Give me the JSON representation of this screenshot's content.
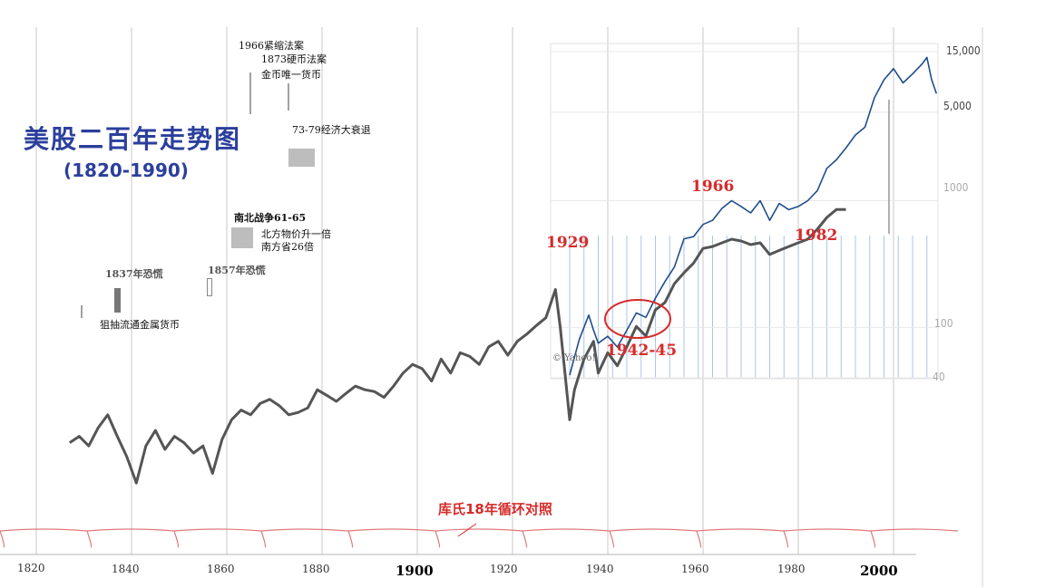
{
  "chart_data": {
    "type": "line",
    "title": "美股二百年走势图",
    "subtitle": "(1820-1990)",
    "x_ticks": [
      1820,
      1840,
      1860,
      1880,
      1900,
      1920,
      1940,
      1960,
      1980,
      2000
    ],
    "y_ticks": [
      "15,000",
      "5,000",
      "1000",
      "100",
      "40"
    ],
    "series": [
      {
        "color": "#555555",
        "x": [
          1827,
          1829,
          1831,
          1833,
          1835,
          1837,
          1839,
          1841,
          1843,
          1845,
          1847,
          1849,
          1851,
          1853,
          1855,
          1857,
          1859,
          1861,
          1863,
          1865,
          1867,
          1869,
          1871,
          1873,
          1875,
          1877,
          1879,
          1881,
          1883,
          1885,
          1887,
          1889,
          1891,
          1893,
          1895,
          1897,
          1899,
          1901,
          1903,
          1905,
          1907,
          1909,
          1911,
          1913,
          1915,
          1917,
          1919,
          1921,
          1923,
          1925,
          1927,
          1929,
          1930,
          1931,
          1932,
          1933,
          1935,
          1937,
          1938,
          1940,
          1942,
          1944,
          1946,
          1948,
          1950,
          1952,
          1954,
          1956,
          1958,
          1960,
          1962,
          1964,
          1966,
          1968,
          1970,
          1972,
          1974,
          1976,
          1978,
          1980,
          1982,
          1984,
          1986,
          1988,
          1990
        ],
        "y": [
          28,
          30,
          27,
          33,
          38,
          30,
          24,
          18,
          27,
          32,
          26,
          30,
          28,
          25,
          27,
          20,
          29,
          36,
          40,
          38,
          43,
          45,
          42,
          38,
          39,
          41,
          50,
          47,
          44,
          48,
          52,
          50,
          49,
          46,
          52,
          60,
          66,
          63,
          55,
          70,
          60,
          75,
          72,
          66,
          80,
          85,
          73,
          85,
          92,
          101,
          110,
          150,
          100,
          60,
          36,
          50,
          70,
          85,
          60,
          75,
          65,
          80,
          100,
          90,
          120,
          130,
          160,
          180,
          200,
          235,
          240,
          250,
          260,
          255,
          245,
          250,
          220,
          230,
          240,
          250,
          260,
          290,
          330,
          360,
          360
        ]
      },
      {
        "color": "#1f4e8c",
        "x": [
          1932,
          1934,
          1936,
          1937,
          1938,
          1940,
          1942,
          1944,
          1946,
          1948,
          1950,
          1952,
          1954,
          1956,
          1958,
          1960,
          1962,
          1964,
          1966,
          1968,
          1970,
          1972,
          1974,
          1976,
          1978,
          1980,
          1982,
          1984,
          1986,
          1988,
          1990,
          1992,
          1994,
          1996,
          1998,
          2000,
          2002,
          2004,
          2006,
          2007,
          2008,
          2009
        ],
        "y": [
          42,
          80,
          125,
          95,
          75,
          85,
          70,
          95,
          130,
          120,
          170,
          230,
          300,
          500,
          520,
          650,
          700,
          870,
          1000,
          900,
          800,
          1000,
          700,
          950,
          850,
          900,
          1000,
          1200,
          1800,
          2100,
          2600,
          3300,
          3800,
          6500,
          9000,
          11000,
          8500,
          10000,
          12000,
          13500,
          9000,
          7000
        ]
      }
    ],
    "annotations": {
      "note_1966": "1966紧缩法案",
      "note_1873a": "1873硬币法案",
      "note_1873b": "金币唯一货币",
      "note_7379": "73-79经济大衰退",
      "civil_war": "南北战争61-65",
      "civil_north": "北方物价升一倍",
      "civil_south": "南方省26倍",
      "panic_1837": "1837年恐慌",
      "panic_1857": "1857年恐慌",
      "metal_money": "狙抽流通金属货币",
      "cycle": "库氏18年循环对照",
      "red_1929": "1929",
      "red_1966": "1966",
      "red_1982": "1982",
      "red_4245": "1942-45",
      "inset_copyright": "© Yahoo!"
    },
    "grid": true
  }
}
